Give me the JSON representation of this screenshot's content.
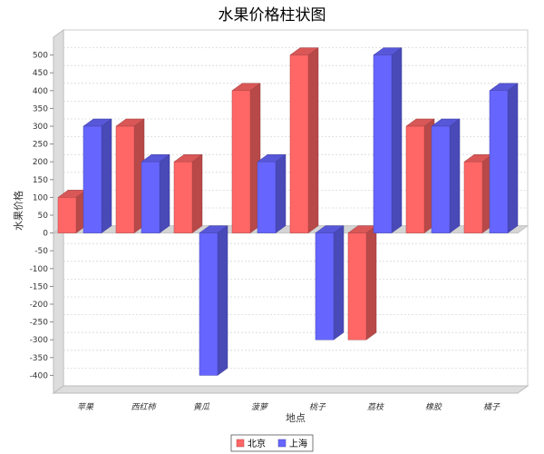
{
  "chart_data": {
    "type": "bar",
    "title": "水果价格柱状图",
    "xlabel": "地点",
    "ylabel": "水果价格",
    "categories": [
      "苹果",
      "西红柿",
      "黄瓜",
      "菠萝",
      "桃子",
      "荔枝",
      "橡胶",
      "橘子"
    ],
    "series": [
      {
        "name": "北京",
        "color": "#ff6666",
        "values": [
          100,
          300,
          200,
          400,
          500,
          -300,
          300,
          200
        ]
      },
      {
        "name": "上海",
        "color": "#6666ff",
        "values": [
          300,
          200,
          -400,
          200,
          -300,
          500,
          300,
          400
        ]
      }
    ],
    "ylim": [
      -450,
      550
    ],
    "yticks": [
      -400,
      -350,
      -300,
      -250,
      -200,
      -150,
      -100,
      -50,
      0,
      50,
      100,
      150,
      200,
      250,
      300,
      350,
      400,
      450,
      500
    ],
    "grid": true,
    "legend_position": "bottom",
    "style": "3d"
  }
}
